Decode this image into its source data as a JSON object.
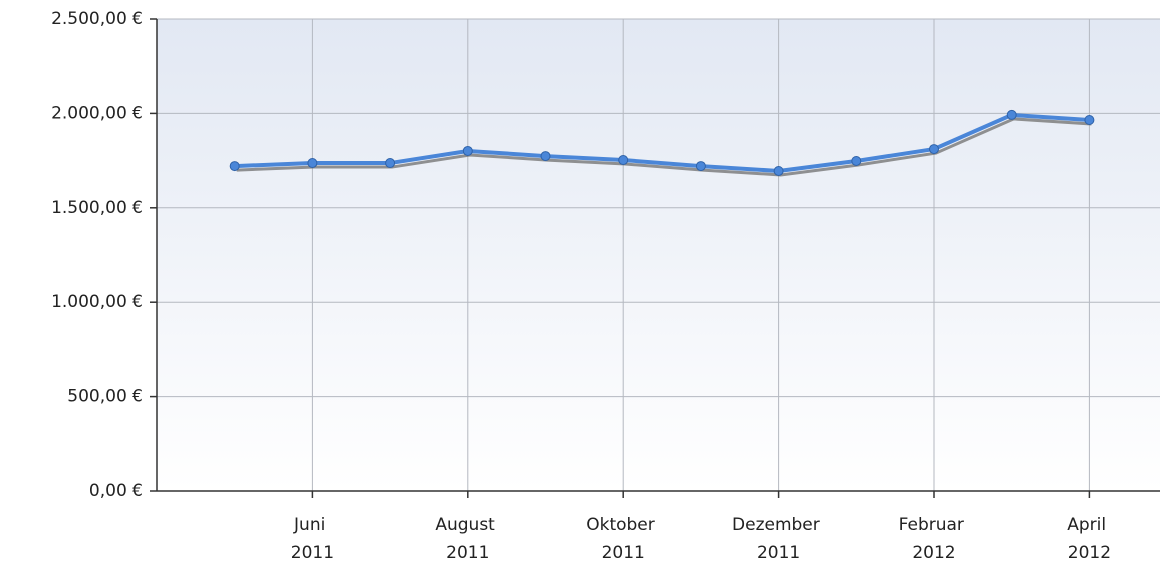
{
  "chart_data": {
    "type": "line",
    "categories": [
      null,
      "Juni 2011",
      null,
      "August 2011",
      null,
      "Oktober 2011",
      null,
      "Dezember 2011",
      null,
      "Februar 2012",
      null,
      "April 2012"
    ],
    "series": [
      {
        "color": "#4a86d8",
        "values": [
          1721,
          1737,
          1737,
          1801,
          1774,
          1753,
          1721,
          1695,
          1748,
          1811,
          1992,
          1965
        ]
      }
    ],
    "ylim": [
      0,
      2500
    ],
    "yticks": [
      {
        "value": 0,
        "label": "0,00 €"
      },
      {
        "value": 500,
        "label": "500,00 €"
      },
      {
        "value": 1000,
        "label": "1.000,00 €"
      },
      {
        "value": 1500,
        "label": "1.500,00 €"
      },
      {
        "value": 2000,
        "label": "2.000,00 €"
      },
      {
        "value": 2500,
        "label": "2.500,00 €"
      }
    ],
    "grid": true
  }
}
